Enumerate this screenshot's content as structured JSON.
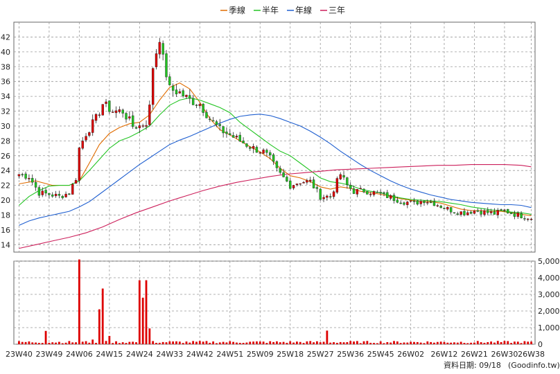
{
  "legend": [
    {
      "label": "季線",
      "color": "#e06c00"
    },
    {
      "label": "半年",
      "color": "#22c422"
    },
    {
      "label": "年線",
      "color": "#1f5fd0"
    },
    {
      "label": "三年",
      "color": "#cc1e5a"
    }
  ],
  "footer": {
    "date_label": "資料日期: 09/18",
    "source": "(Goodinfo.tw)"
  },
  "colors": {
    "up": "#dd0000",
    "down": "#22c422",
    "volume": "#dd0000",
    "grid": "#999999"
  },
  "chart_data": [
    {
      "type": "candlestick",
      "title": "",
      "x_ticks": [
        "23W40",
        "23W49",
        "24W06",
        "24W15",
        "24W24",
        "24W33",
        "24W42",
        "24W51",
        "25W09",
        "25W18",
        "25W27",
        "25W36",
        "25W45",
        "26W02",
        "26W12",
        "26W21",
        "26W30",
        "26W38"
      ],
      "x_tick_index": [
        0,
        9,
        18,
        27,
        36,
        45,
        54,
        63,
        72,
        81,
        90,
        99,
        108,
        117,
        127,
        136,
        145,
        153
      ],
      "ylim": [
        13,
        44
      ],
      "y_ticks": [
        14,
        16,
        18,
        20,
        22,
        24,
        26,
        28,
        30,
        32,
        34,
        36,
        38,
        40,
        42
      ],
      "grid": true,
      "legend_position": "top-center",
      "close_anchors": [
        [
          0,
          23.5
        ],
        [
          3,
          23.2
        ],
        [
          6,
          21
        ],
        [
          9,
          20.8
        ],
        [
          12,
          20.5
        ],
        [
          15,
          21
        ],
        [
          17,
          23
        ],
        [
          18,
          27
        ],
        [
          20,
          29
        ],
        [
          23,
          31
        ],
        [
          25,
          33
        ],
        [
          28,
          32
        ],
        [
          31,
          32
        ],
        [
          34,
          30
        ],
        [
          36,
          30
        ],
        [
          38,
          30.5
        ],
        [
          39,
          32.5
        ],
        [
          40,
          38
        ],
        [
          41,
          40
        ],
        [
          42,
          42
        ],
        [
          43,
          39
        ],
        [
          45,
          35
        ],
        [
          48,
          34.5
        ],
        [
          51,
          33.5
        ],
        [
          54,
          33
        ],
        [
          57,
          31
        ],
        [
          60,
          29.5
        ],
        [
          63,
          28.8
        ],
        [
          66,
          28
        ],
        [
          70,
          27
        ],
        [
          73,
          26.5
        ],
        [
          75,
          25.6
        ],
        [
          77,
          24
        ],
        [
          79,
          23
        ],
        [
          81,
          22
        ],
        [
          84,
          22.5
        ],
        [
          87,
          22.5
        ],
        [
          90,
          20.5
        ],
        [
          93,
          20.5
        ],
        [
          96,
          23.5
        ],
        [
          98,
          22
        ],
        [
          100,
          21.2
        ],
        [
          103,
          21.3
        ],
        [
          106,
          21
        ],
        [
          109,
          20.7
        ],
        [
          112,
          20.2
        ],
        [
          115,
          19.8
        ],
        [
          118,
          19.6
        ],
        [
          121,
          20
        ],
        [
          124,
          19.6
        ],
        [
          127,
          19
        ],
        [
          130,
          18.5
        ],
        [
          133,
          18.3
        ],
        [
          136,
          18.6
        ],
        [
          139,
          18.4
        ],
        [
          142,
          18.2
        ],
        [
          145,
          18.6
        ],
        [
          148,
          18.1
        ],
        [
          151,
          17.8
        ],
        [
          153,
          17.6
        ]
      ],
      "series": [
        {
          "name": "季線",
          "type": "line",
          "color": "#e06c00",
          "points": [
            [
              0,
              22.2
            ],
            [
              5,
              22.6
            ],
            [
              10,
              22
            ],
            [
              15,
              22
            ],
            [
              18,
              22.6
            ],
            [
              21,
              25
            ],
            [
              24,
              27.5
            ],
            [
              27,
              29
            ],
            [
              30,
              29.8
            ],
            [
              33,
              30.3
            ],
            [
              36,
              30.5
            ],
            [
              39,
              31.5
            ],
            [
              42,
              33.5
            ],
            [
              45,
              35.2
            ],
            [
              48,
              35.8
            ],
            [
              51,
              35
            ],
            [
              54,
              33.2
            ],
            [
              57,
              31
            ],
            [
              60,
              29.5
            ],
            [
              63,
              28.8
            ],
            [
              66,
              28
            ],
            [
              69,
              27.2
            ],
            [
              72,
              26.5
            ],
            [
              75,
              25.6
            ],
            [
              78,
              24.3
            ],
            [
              81,
              23.3
            ],
            [
              84,
              23
            ],
            [
              87,
              22.5
            ],
            [
              90,
              21.8
            ],
            [
              93,
              21.5
            ],
            [
              96,
              21.8
            ],
            [
              99,
              21.6
            ],
            [
              102,
              21.2
            ],
            [
              105,
              21
            ],
            [
              108,
              20.8
            ],
            [
              111,
              20.5
            ],
            [
              114,
              20.2
            ],
            [
              117,
              20
            ],
            [
              120,
              19.8
            ],
            [
              123,
              19.8
            ],
            [
              126,
              19.6
            ],
            [
              129,
              19.2
            ],
            [
              132,
              18.8
            ],
            [
              135,
              18.6
            ],
            [
              138,
              18.6
            ],
            [
              141,
              18.5
            ],
            [
              144,
              18.5
            ],
            [
              147,
              18.3
            ],
            [
              150,
              18.1
            ],
            [
              153,
              17.9
            ]
          ]
        },
        {
          "name": "半年",
          "type": "line",
          "color": "#22c422",
          "points": [
            [
              0,
              19.3
            ],
            [
              3,
              20.5
            ],
            [
              6,
              21.3
            ],
            [
              9,
              21.9
            ],
            [
              12,
              22
            ],
            [
              15,
              22
            ],
            [
              18,
              22.6
            ],
            [
              21,
              24
            ],
            [
              24,
              25.5
            ],
            [
              27,
              27
            ],
            [
              30,
              28
            ],
            [
              33,
              28.5
            ],
            [
              36,
              29.2
            ],
            [
              39,
              30
            ],
            [
              42,
              31.5
            ],
            [
              45,
              32.8
            ],
            [
              48,
              33.5
            ],
            [
              51,
              33.8
            ],
            [
              54,
              33.5
            ],
            [
              57,
              33
            ],
            [
              60,
              32.5
            ],
            [
              63,
              31.8
            ],
            [
              66,
              30.5
            ],
            [
              69,
              29.5
            ],
            [
              72,
              28.5
            ],
            [
              75,
              27.5
            ],
            [
              78,
              26.6
            ],
            [
              81,
              26
            ],
            [
              84,
              25
            ],
            [
              87,
              24
            ],
            [
              90,
              23
            ],
            [
              93,
              22.5
            ],
            [
              96,
              22.3
            ],
            [
              99,
              22
            ],
            [
              102,
              21.5
            ],
            [
              105,
              21.2
            ],
            [
              108,
              21
            ],
            [
              111,
              20.6
            ],
            [
              114,
              20.3
            ],
            [
              117,
              20.1
            ],
            [
              120,
              20
            ],
            [
              123,
              19.9
            ],
            [
              126,
              19.8
            ],
            [
              129,
              19.6
            ],
            [
              132,
              19.4
            ],
            [
              135,
              19.1
            ],
            [
              138,
              18.9
            ],
            [
              141,
              18.7
            ],
            [
              144,
              18.6
            ],
            [
              147,
              18.4
            ],
            [
              150,
              18.3
            ],
            [
              153,
              18.1
            ]
          ]
        },
        {
          "name": "年線",
          "type": "line",
          "color": "#1f5fd0",
          "points": [
            [
              0,
              16.6
            ],
            [
              3,
              17.2
            ],
            [
              6,
              17.6
            ],
            [
              9,
              17.9
            ],
            [
              12,
              18.2
            ],
            [
              15,
              18.5
            ],
            [
              18,
              19.1
            ],
            [
              21,
              19.8
            ],
            [
              24,
              20.8
            ],
            [
              27,
              21.8
            ],
            [
              30,
              22.8
            ],
            [
              33,
              23.8
            ],
            [
              36,
              24.8
            ],
            [
              39,
              25.7
            ],
            [
              42,
              26.6
            ],
            [
              45,
              27.5
            ],
            [
              48,
              28.1
            ],
            [
              51,
              28.6
            ],
            [
              54,
              29.2
            ],
            [
              57,
              29.8
            ],
            [
              60,
              30.4
            ],
            [
              63,
              30.9
            ],
            [
              66,
              31.3
            ],
            [
              69,
              31.5
            ],
            [
              72,
              31.6
            ],
            [
              75,
              31.4
            ],
            [
              78,
              31
            ],
            [
              81,
              30.5
            ],
            [
              84,
              30
            ],
            [
              87,
              29.3
            ],
            [
              90,
              28.5
            ],
            [
              93,
              27.6
            ],
            [
              96,
              26.6
            ],
            [
              99,
              25.7
            ],
            [
              102,
              24.8
            ],
            [
              105,
              24
            ],
            [
              108,
              23.3
            ],
            [
              111,
              22.6
            ],
            [
              114,
              22
            ],
            [
              117,
              21.5
            ],
            [
              120,
              21.1
            ],
            [
              123,
              20.7
            ],
            [
              126,
              20.4
            ],
            [
              129,
              20.1
            ],
            [
              132,
              19.9
            ],
            [
              135,
              19.7
            ],
            [
              138,
              19.6
            ],
            [
              141,
              19.5
            ],
            [
              144,
              19.4
            ],
            [
              147,
              19.4
            ],
            [
              150,
              19.3
            ],
            [
              153,
              19
            ]
          ]
        },
        {
          "name": "三年",
          "type": "line",
          "color": "#cc1e5a",
          "points": [
            [
              0,
              13.5
            ],
            [
              5,
              14
            ],
            [
              10,
              14.5
            ],
            [
              15,
              15
            ],
            [
              20,
              15.6
            ],
            [
              25,
              16.4
            ],
            [
              30,
              17.4
            ],
            [
              35,
              18.3
            ],
            [
              40,
              19.1
            ],
            [
              45,
              19.9
            ],
            [
              50,
              20.6
            ],
            [
              55,
              21.3
            ],
            [
              60,
              21.9
            ],
            [
              65,
              22.4
            ],
            [
              70,
              22.8
            ],
            [
              75,
              23.2
            ],
            [
              80,
              23.5
            ],
            [
              85,
              23.7
            ],
            [
              90,
              23.9
            ],
            [
              95,
              24.1
            ],
            [
              100,
              24.2
            ],
            [
              105,
              24.3
            ],
            [
              110,
              24.4
            ],
            [
              115,
              24.5
            ],
            [
              120,
              24.6
            ],
            [
              125,
              24.7
            ],
            [
              130,
              24.7
            ],
            [
              135,
              24.8
            ],
            [
              140,
              24.8
            ],
            [
              145,
              24.8
            ],
            [
              150,
              24.7
            ],
            [
              153,
              24.5
            ]
          ]
        }
      ]
    },
    {
      "type": "bar",
      "title": "",
      "ylabel": "",
      "ylim": [
        0,
        5000
      ],
      "y_ticks": [
        0,
        1000,
        2000,
        3000,
        4000,
        5000
      ],
      "y_tick_labels": [
        "0",
        "1,000",
        "2,000",
        "3,000",
        "4,000",
        "5,000"
      ],
      "grid": true,
      "spikes": [
        [
          8,
          800
        ],
        [
          18,
          5100
        ],
        [
          22,
          280
        ],
        [
          24,
          2100
        ],
        [
          25,
          3350
        ],
        [
          27,
          500
        ],
        [
          36,
          3850
        ],
        [
          37,
          2800
        ],
        [
          38,
          3850
        ],
        [
          39,
          950
        ],
        [
          92,
          820
        ]
      ],
      "baseline_volume": [
        60,
        200
      ]
    }
  ]
}
